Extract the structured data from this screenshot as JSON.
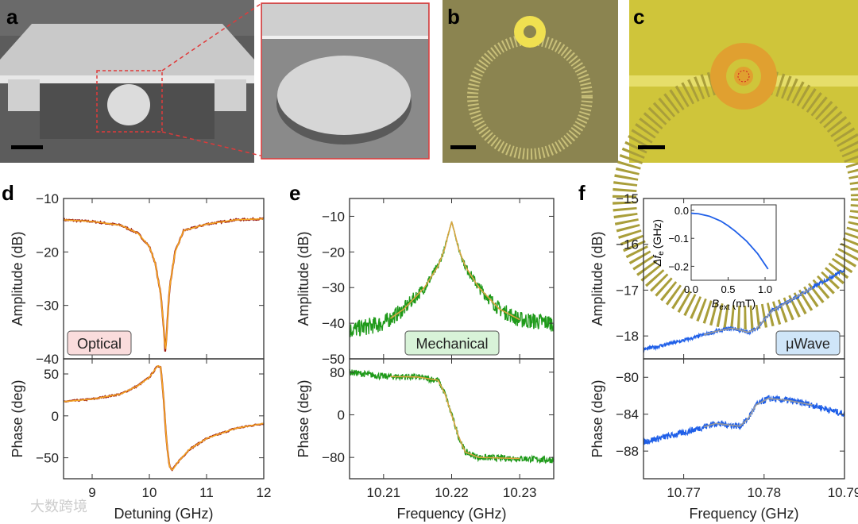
{
  "panel_labels": {
    "a": "a",
    "b": "b",
    "c": "c",
    "d": "d",
    "e": "e",
    "f": "f"
  },
  "watermark": "大数跨境",
  "colors": {
    "optical_data": "#9b1a12",
    "optical_fit": "#f5a623",
    "mech_data": "#1f9a1a",
    "mech_fit": "#d9a441",
    "uwave_data": "#1f5fe8",
    "uwave_fit": "#9a9a9a",
    "inset_line": "#1f5fe8"
  },
  "chart_data": [
    {
      "id": "d",
      "type": "line",
      "badge": "Optical",
      "badge_color": "#fadcdc",
      "xlabel": "Detuning (GHz)",
      "xlim": [
        8.5,
        12
      ],
      "xticks": [
        9,
        10,
        11,
        12
      ],
      "xticklabels": [
        "9",
        "10",
        "11",
        "12"
      ],
      "top": {
        "ylabel": "Amplitude (dB)",
        "ylim": [
          -40,
          -10
        ],
        "yticks": [
          -10,
          -20,
          -30,
          -40
        ],
        "yticklabels": [
          "−10",
          "−20",
          "−30",
          "−40"
        ],
        "series": [
          {
            "name": "data",
            "x": [
              8.5,
              9,
              9.5,
              9.8,
              10,
              10.1,
              10.2,
              10.25,
              10.28,
              10.31,
              10.35,
              10.45,
              10.6,
              11,
              11.5,
              12
            ],
            "y": [
              -14,
              -14.3,
              -15,
              -16.5,
              -19,
              -22,
              -28,
              -34,
              -39,
              -34,
              -27,
              -20,
              -16,
              -14.8,
              -14,
              -13.8
            ]
          }
        ],
        "fit_range": [
          8.5,
          12
        ]
      },
      "bottom": {
        "ylabel": "Phase (deg)",
        "ylim": [
          -75,
          68
        ],
        "yticks": [
          50,
          0,
          -50
        ],
        "yticklabels": [
          "50",
          "0",
          "−50"
        ],
        "series": [
          {
            "name": "data",
            "x": [
              8.5,
              9,
              9.5,
              9.8,
              10,
              10.15,
              10.2,
              10.25,
              10.3,
              10.35,
              10.4,
              10.5,
              10.7,
              11,
              11.5,
              12
            ],
            "y": [
              17,
              20,
              26,
              36,
              46,
              60,
              58,
              20,
              -30,
              -60,
              -65,
              -55,
              -40,
              -27,
              -15,
              -9
            ]
          }
        ],
        "fit_range": [
          8.5,
          12
        ]
      }
    },
    {
      "id": "e",
      "type": "line",
      "badge": "Mechanical",
      "badge_color": "#d8f3d8",
      "xlabel": "Frequency (GHz)",
      "xlim": [
        10.205,
        10.235
      ],
      "xticks": [
        10.21,
        10.22,
        10.23
      ],
      "xticklabels": [
        "10.21",
        "10.22",
        "10.23"
      ],
      "top": {
        "ylabel": "Amplitude (dB)",
        "ylim": [
          -50,
          -5
        ],
        "yticks": [
          -10,
          -20,
          -30,
          -40,
          -50
        ],
        "yticklabels": [
          "−10",
          "−20",
          "−30",
          "−40",
          "−50"
        ],
        "series": [
          {
            "name": "data",
            "x": [
              10.205,
              10.21,
              10.213,
              10.216,
              10.218,
              10.219,
              10.2195,
              10.22,
              10.2205,
              10.221,
              10.222,
              10.224,
              10.227,
              10.23,
              10.235
            ],
            "y": [
              -42,
              -40,
              -36,
              -30,
              -24,
              -19,
              -15,
              -11.5,
              -15,
              -19,
              -24,
              -30,
              -36,
              -39,
              -40
            ]
          }
        ],
        "fit_range": [
          10.211,
          10.23
        ]
      },
      "bottom": {
        "ylabel": "Phase (deg)",
        "ylim": [
          -120,
          105
        ],
        "yticks": [
          80,
          0,
          -80
        ],
        "yticklabels": [
          "80",
          "0",
          "−80"
        ],
        "series": [
          {
            "name": "data",
            "x": [
              10.205,
              10.21,
              10.215,
              10.218,
              10.219,
              10.22,
              10.221,
              10.222,
              10.224,
              10.23,
              10.235
            ],
            "y": [
              80,
              72,
              71,
              65,
              40,
              0,
              -40,
              -70,
              -80,
              -82,
              -85
            ]
          }
        ],
        "fit_range": [
          10.211,
          10.23
        ]
      }
    },
    {
      "id": "f",
      "type": "line",
      "badge": "μWave",
      "badge_color": "#cfe5f8",
      "xlabel": "Frequency (GHz)",
      "xlim": [
        10.765,
        10.79
      ],
      "xticks": [
        10.77,
        10.78,
        10.79
      ],
      "xticklabels": [
        "10.77",
        "10.78",
        "10.79"
      ],
      "top": {
        "ylabel": "Amplitude (dB)",
        "ylim": [
          -18.5,
          -15
        ],
        "yticks": [
          -15,
          -16,
          -17,
          -18
        ],
        "yticklabels": [
          "−15",
          "−16",
          "−17",
          "−18"
        ],
        "series": [
          {
            "name": "data",
            "x": [
              10.765,
              10.77,
              10.774,
              10.776,
              10.778,
              10.779,
              10.781,
              10.784,
              10.787,
              10.79
            ],
            "y": [
              -18.3,
              -18.1,
              -17.9,
              -17.83,
              -17.92,
              -17.85,
              -17.45,
              -17.15,
              -16.85,
              -16.55
            ]
          }
        ],
        "fit_range": [
          10.7725,
          10.786
        ]
      },
      "bottom": {
        "ylabel": "Phase (deg)",
        "ylim": [
          -91,
          -78
        ],
        "yticks": [
          -80,
          -84,
          -88
        ],
        "yticklabels": [
          "−80",
          "−84",
          "−88"
        ],
        "series": [
          {
            "name": "data",
            "x": [
              10.765,
              10.77,
              10.774,
              10.777,
              10.778,
              10.779,
              10.7805,
              10.783,
              10.786,
              10.79
            ],
            "y": [
              -87,
              -86,
              -85,
              -85.3,
              -84.5,
              -83,
              -82.3,
              -82.5,
              -83,
              -84
            ]
          }
        ],
        "fit_range": [
          10.7725,
          10.786
        ]
      },
      "inset": {
        "xlabel_main": "B",
        "xlabel_sub": "ext",
        "xlabel_unit": "(mT)",
        "ylabel_main": "Δf",
        "ylabel_sub": "e",
        "ylabel_unit": "(GHz)",
        "xlim": [
          0,
          1.15
        ],
        "ylim": [
          -0.25,
          0.02
        ],
        "xticks": [
          0,
          0.5,
          1.0
        ],
        "xticklabels": [
          "0.0",
          "0.5",
          "1.0"
        ],
        "yticks": [
          0,
          -0.1,
          -0.2
        ],
        "yticklabels": [
          "0.0",
          "−0.1",
          "−0.2"
        ],
        "x": [
          0,
          0.1,
          0.25,
          0.4,
          0.5,
          0.6,
          0.75,
          0.9,
          1.04
        ],
        "y": [
          -0.01,
          -0.012,
          -0.021,
          -0.038,
          -0.055,
          -0.075,
          -0.11,
          -0.155,
          -0.21
        ]
      }
    }
  ]
}
